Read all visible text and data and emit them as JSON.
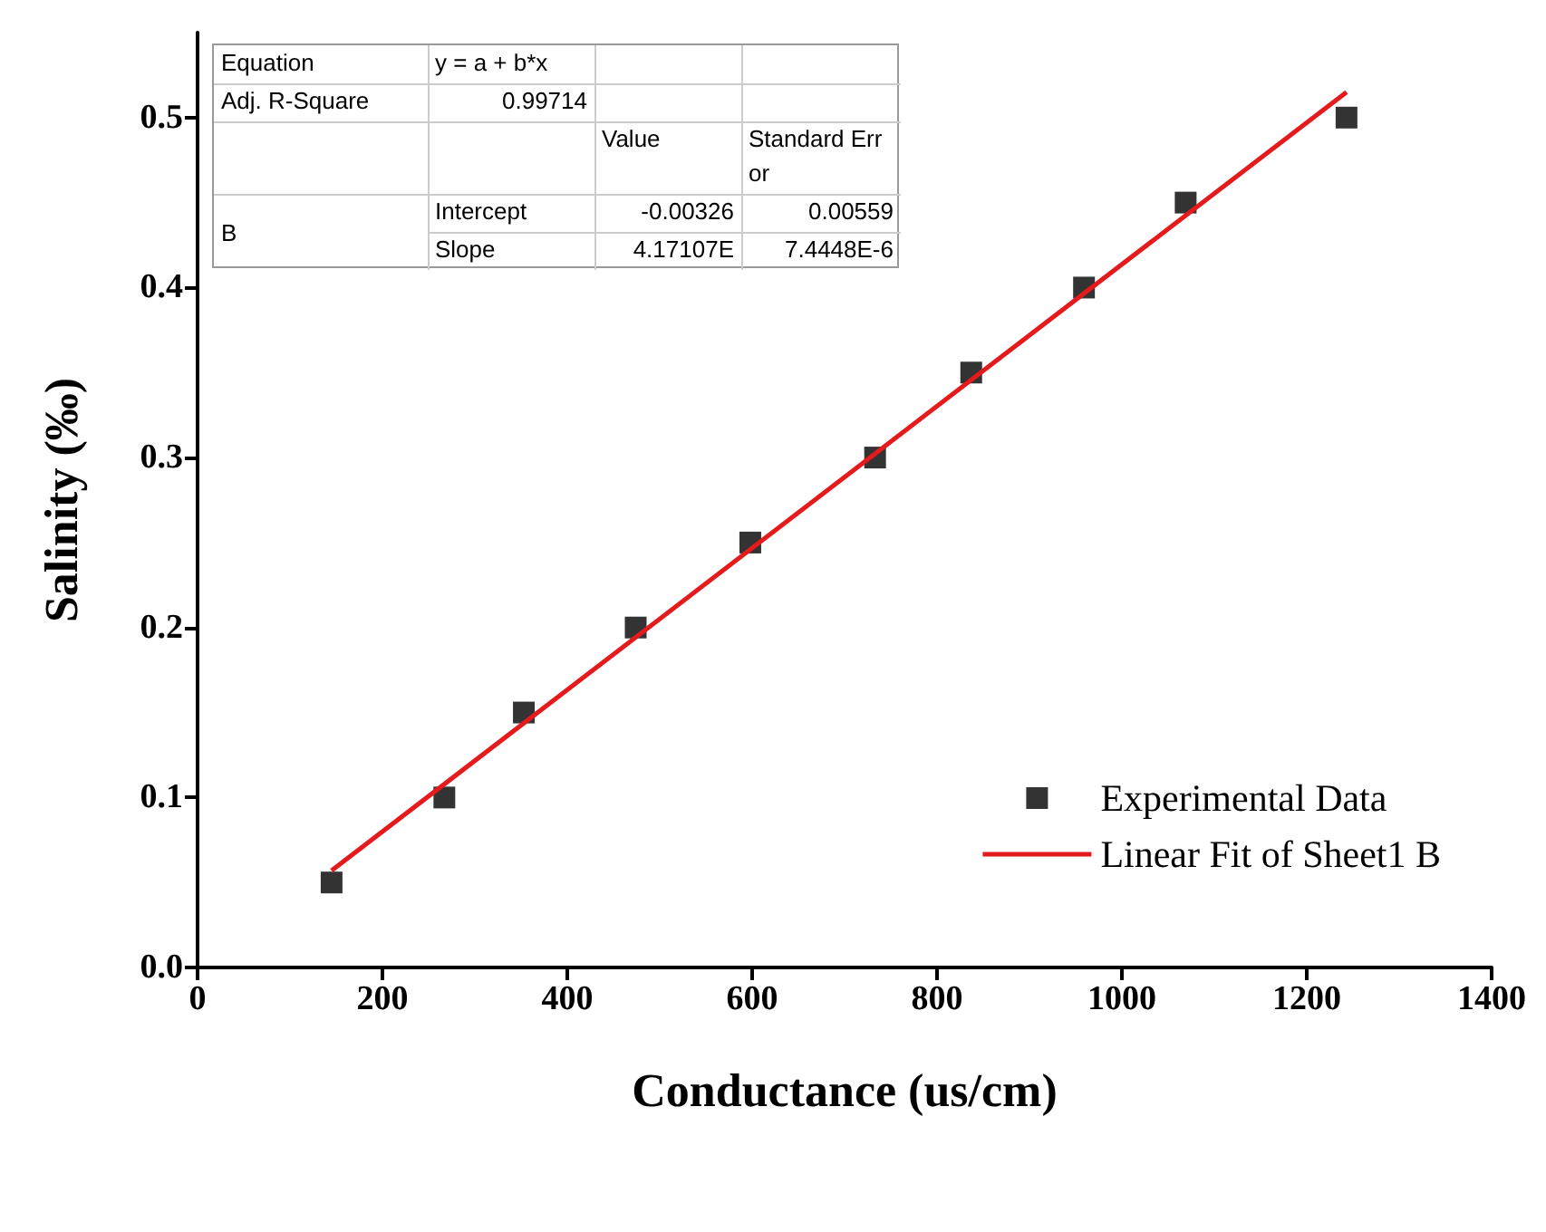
{
  "chart_data": {
    "type": "scatter",
    "xlabel": "Conductance (us/cm)",
    "ylabel": "Salinity (‰)",
    "x": [
      145,
      267,
      353,
      474,
      598,
      733,
      837,
      959,
      1069,
      1243
    ],
    "series": [
      {
        "name": "Experimental Data",
        "color": "#000000",
        "marker": "square",
        "values": [
          0.05,
          0.1,
          0.15,
          0.2,
          0.25,
          0.3,
          0.35,
          0.4,
          0.45,
          0.5
        ]
      },
      {
        "name": "Linear Fit of Sheet1 B",
        "type": "line",
        "color": "#e41a1c",
        "x": [
          145,
          1243
        ],
        "values": [
          0.057,
          0.515
        ],
        "marker": "none",
        "line_style": "solid"
      }
    ],
    "xlim": [
      0,
      1400
    ],
    "xticks": [
      0,
      200,
      400,
      600,
      800,
      1000,
      1200,
      1400
    ],
    "ylim": [
      0,
      0.55
    ],
    "yticks": [
      {
        "value": 0,
        "label": "0.0"
      },
      0.1,
      0.2,
      0.3,
      0.4,
      0.5
    ],
    "grid": false,
    "legend": "bottom right",
    "annotations": [
      "Equation",
      "y = a + b*x",
      "Adj. R-Square",
      "0.99714",
      "Value",
      "Standard Error",
      "B",
      "Intercept",
      "-0.00326",
      "0.00559",
      "Slope",
      "4.17107E",
      "7.4448E-6"
    ]
  }
}
